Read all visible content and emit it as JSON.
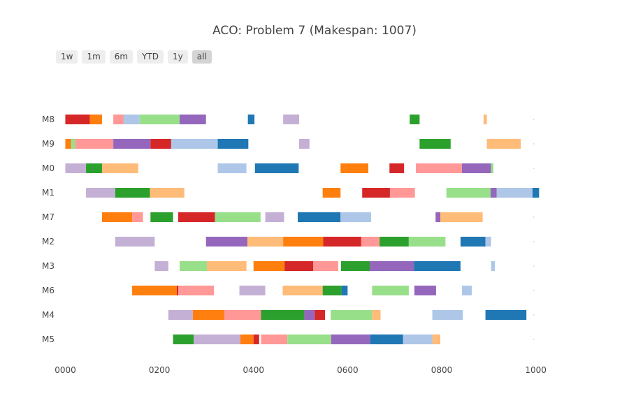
{
  "title": "ACO: Problem 7 (Makespan: 1007)",
  "range_buttons": [
    "1w",
    "1m",
    "6m",
    "YTD",
    "1y",
    "all"
  ],
  "active_range": "all",
  "colors": {
    "blue": "#1f77b4",
    "lightblue": "#aec7e8",
    "orange": "#ff7f0e",
    "lightorange": "#ffbb78",
    "green": "#2ca02c",
    "lightgreen": "#98df8a",
    "red": "#d62728",
    "pink": "#ff9896",
    "purple": "#9467bd",
    "lavender": "#c5b0d5"
  },
  "chart_data": {
    "type": "gantt",
    "title": "ACO: Problem 7 (Makespan: 1007)",
    "xlabel": "",
    "ylabel": "",
    "xlim": [
      -20,
      1005
    ],
    "x_ticks": [
      "0000",
      "0200",
      "0400",
      "0600",
      "0800",
      "1000"
    ],
    "x_tick_values": [
      0,
      200,
      400,
      600,
      800,
      1000
    ],
    "machines": [
      "M8",
      "M9",
      "M0",
      "M1",
      "M7",
      "M2",
      "M3",
      "M6",
      "M4",
      "M5"
    ],
    "tasks": [
      {
        "m": "M8",
        "s": 0,
        "e": 52,
        "c": "red"
      },
      {
        "m": "M8",
        "s": 52,
        "e": 78,
        "c": "orange"
      },
      {
        "m": "M8",
        "s": 102,
        "e": 124,
        "c": "pink"
      },
      {
        "m": "M8",
        "s": 124,
        "e": 158,
        "c": "lightblue"
      },
      {
        "m": "M8",
        "s": 158,
        "e": 243,
        "c": "lightgreen"
      },
      {
        "m": "M8",
        "s": 243,
        "e": 299,
        "c": "purple"
      },
      {
        "m": "M8",
        "s": 388,
        "e": 402,
        "c": "blue"
      },
      {
        "m": "M8",
        "s": 463,
        "e": 497,
        "c": "lavender"
      },
      {
        "m": "M8",
        "s": 732,
        "e": 753,
        "c": "green"
      },
      {
        "m": "M8",
        "s": 889,
        "e": 896,
        "c": "lightorange"
      },
      {
        "m": "M9",
        "s": 0,
        "e": 12,
        "c": "orange"
      },
      {
        "m": "M9",
        "s": 12,
        "e": 21,
        "c": "lightgreen"
      },
      {
        "m": "M9",
        "s": 21,
        "e": 102,
        "c": "pink"
      },
      {
        "m": "M9",
        "s": 102,
        "e": 181,
        "c": "purple"
      },
      {
        "m": "M9",
        "s": 181,
        "e": 225,
        "c": "red"
      },
      {
        "m": "M9",
        "s": 225,
        "e": 324,
        "c": "lightblue"
      },
      {
        "m": "M9",
        "s": 324,
        "e": 389,
        "c": "blue"
      },
      {
        "m": "M9",
        "s": 497,
        "e": 519,
        "c": "lavender"
      },
      {
        "m": "M9",
        "s": 753,
        "e": 819,
        "c": "green"
      },
      {
        "m": "M9",
        "s": 896,
        "e": 968,
        "c": "lightorange"
      },
      {
        "m": "M0",
        "s": 0,
        "e": 44,
        "c": "lavender"
      },
      {
        "m": "M0",
        "s": 44,
        "e": 78,
        "c": "green"
      },
      {
        "m": "M0",
        "s": 78,
        "e": 155,
        "c": "lightorange"
      },
      {
        "m": "M0",
        "s": 324,
        "e": 385,
        "c": "lightblue"
      },
      {
        "m": "M0",
        "s": 403,
        "e": 496,
        "c": "blue"
      },
      {
        "m": "M0",
        "s": 585,
        "e": 644,
        "c": "orange"
      },
      {
        "m": "M0",
        "s": 689,
        "e": 720,
        "c": "red"
      },
      {
        "m": "M0",
        "s": 745,
        "e": 843,
        "c": "pink"
      },
      {
        "m": "M0",
        "s": 843,
        "e": 905,
        "c": "purple"
      },
      {
        "m": "M0",
        "s": 905,
        "e": 910,
        "c": "lightgreen"
      },
      {
        "m": "M1",
        "s": 44,
        "e": 106,
        "c": "lavender"
      },
      {
        "m": "M1",
        "s": 106,
        "e": 180,
        "c": "green"
      },
      {
        "m": "M1",
        "s": 180,
        "e": 253,
        "c": "lightorange"
      },
      {
        "m": "M1",
        "s": 547,
        "e": 585,
        "c": "orange"
      },
      {
        "m": "M1",
        "s": 631,
        "e": 690,
        "c": "red"
      },
      {
        "m": "M1",
        "s": 690,
        "e": 743,
        "c": "pink"
      },
      {
        "m": "M1",
        "s": 810,
        "e": 904,
        "c": "lightgreen"
      },
      {
        "m": "M1",
        "s": 904,
        "e": 917,
        "c": "purple"
      },
      {
        "m": "M1",
        "s": 917,
        "e": 993,
        "c": "lightblue"
      },
      {
        "m": "M1",
        "s": 993,
        "e": 1007,
        "c": "blue"
      },
      {
        "m": "M7",
        "s": 78,
        "e": 142,
        "c": "orange"
      },
      {
        "m": "M7",
        "s": 142,
        "e": 165,
        "c": "pink"
      },
      {
        "m": "M7",
        "s": 181,
        "e": 229,
        "c": "green"
      },
      {
        "m": "M7",
        "s": 240,
        "e": 318,
        "c": "red"
      },
      {
        "m": "M7",
        "s": 318,
        "e": 415,
        "c": "lightgreen"
      },
      {
        "m": "M7",
        "s": 425,
        "e": 465,
        "c": "lavender"
      },
      {
        "m": "M7",
        "s": 494,
        "e": 585,
        "c": "blue"
      },
      {
        "m": "M7",
        "s": 585,
        "e": 650,
        "c": "lightblue"
      },
      {
        "m": "M7",
        "s": 787,
        "e": 797,
        "c": "purple"
      },
      {
        "m": "M7",
        "s": 797,
        "e": 887,
        "c": "lightorange"
      },
      {
        "m": "M2",
        "s": 106,
        "e": 190,
        "c": "lavender"
      },
      {
        "m": "M2",
        "s": 299,
        "e": 387,
        "c": "purple"
      },
      {
        "m": "M2",
        "s": 387,
        "e": 463,
        "c": "lightorange"
      },
      {
        "m": "M2",
        "s": 463,
        "e": 548,
        "c": "orange"
      },
      {
        "m": "M2",
        "s": 548,
        "e": 629,
        "c": "red"
      },
      {
        "m": "M2",
        "s": 629,
        "e": 668,
        "c": "pink"
      },
      {
        "m": "M2",
        "s": 668,
        "e": 730,
        "c": "green"
      },
      {
        "m": "M2",
        "s": 730,
        "e": 808,
        "c": "lightgreen"
      },
      {
        "m": "M2",
        "s": 840,
        "e": 893,
        "c": "blue"
      },
      {
        "m": "M2",
        "s": 893,
        "e": 905,
        "c": "lightblue"
      },
      {
        "m": "M3",
        "s": 190,
        "e": 219,
        "c": "lavender"
      },
      {
        "m": "M3",
        "s": 243,
        "e": 301,
        "c": "lightgreen"
      },
      {
        "m": "M3",
        "s": 301,
        "e": 385,
        "c": "lightorange"
      },
      {
        "m": "M3",
        "s": 400,
        "e": 466,
        "c": "orange"
      },
      {
        "m": "M3",
        "s": 466,
        "e": 527,
        "c": "red"
      },
      {
        "m": "M3",
        "s": 527,
        "e": 580,
        "c": "pink"
      },
      {
        "m": "M3",
        "s": 586,
        "e": 647,
        "c": "green"
      },
      {
        "m": "M3",
        "s": 647,
        "e": 741,
        "c": "purple"
      },
      {
        "m": "M3",
        "s": 741,
        "e": 840,
        "c": "blue"
      },
      {
        "m": "M3",
        "s": 905,
        "e": 913,
        "c": "lightblue"
      },
      {
        "m": "M6",
        "s": 142,
        "e": 237,
        "c": "orange"
      },
      {
        "m": "M6",
        "s": 237,
        "e": 240,
        "c": "red"
      },
      {
        "m": "M6",
        "s": 240,
        "e": 316,
        "c": "pink"
      },
      {
        "m": "M6",
        "s": 370,
        "e": 425,
        "c": "lavender"
      },
      {
        "m": "M6",
        "s": 462,
        "e": 547,
        "c": "lightorange"
      },
      {
        "m": "M6",
        "s": 547,
        "e": 587,
        "c": "green"
      },
      {
        "m": "M6",
        "s": 587,
        "e": 600,
        "c": "blue"
      },
      {
        "m": "M6",
        "s": 652,
        "e": 730,
        "c": "lightgreen"
      },
      {
        "m": "M6",
        "s": 742,
        "e": 788,
        "c": "purple"
      },
      {
        "m": "M6",
        "s": 843,
        "e": 864,
        "c": "lightblue"
      },
      {
        "m": "M4",
        "s": 219,
        "e": 271,
        "c": "lavender"
      },
      {
        "m": "M4",
        "s": 271,
        "e": 338,
        "c": "orange"
      },
      {
        "m": "M4",
        "s": 338,
        "e": 416,
        "c": "pink"
      },
      {
        "m": "M4",
        "s": 416,
        "e": 508,
        "c": "green"
      },
      {
        "m": "M4",
        "s": 508,
        "e": 530,
        "c": "purple"
      },
      {
        "m": "M4",
        "s": 530,
        "e": 552,
        "c": "red"
      },
      {
        "m": "M4",
        "s": 564,
        "e": 652,
        "c": "lightgreen"
      },
      {
        "m": "M4",
        "s": 652,
        "e": 670,
        "c": "lightorange"
      },
      {
        "m": "M4",
        "s": 780,
        "e": 845,
        "c": "lightblue"
      },
      {
        "m": "M4",
        "s": 893,
        "e": 980,
        "c": "blue"
      },
      {
        "m": "M5",
        "s": 229,
        "e": 273,
        "c": "green"
      },
      {
        "m": "M5",
        "s": 273,
        "e": 372,
        "c": "lavender"
      },
      {
        "m": "M5",
        "s": 372,
        "e": 400,
        "c": "orange"
      },
      {
        "m": "M5",
        "s": 400,
        "e": 412,
        "c": "red"
      },
      {
        "m": "M5",
        "s": 416,
        "e": 472,
        "c": "pink"
      },
      {
        "m": "M5",
        "s": 472,
        "e": 565,
        "c": "lightgreen"
      },
      {
        "m": "M5",
        "s": 565,
        "e": 648,
        "c": "purple"
      },
      {
        "m": "M5",
        "s": 648,
        "e": 718,
        "c": "blue"
      },
      {
        "m": "M5",
        "s": 718,
        "e": 780,
        "c": "lightblue"
      },
      {
        "m": "M5",
        "s": 780,
        "e": 797,
        "c": "lightorange"
      }
    ],
    "grid": false,
    "legend": "none"
  }
}
